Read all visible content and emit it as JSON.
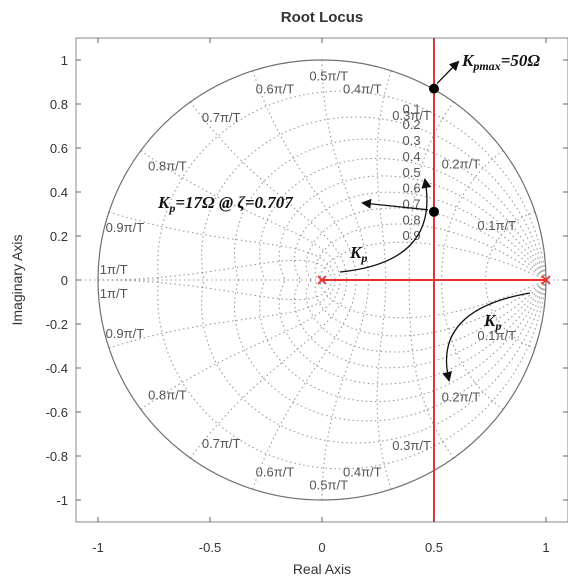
{
  "chart_data": {
    "type": "root-locus",
    "title": "Root Locus",
    "xlabel": "Real Axis",
    "ylabel": "Imaginary Axis",
    "xlim": [
      -1.1,
      1.1
    ],
    "ylim": [
      -1.1,
      1.1
    ],
    "xticks": [
      "-1",
      "-0.5",
      "0",
      "0.5",
      "1"
    ],
    "xtick_values": [
      -1,
      -0.5,
      0,
      0.5,
      1
    ],
    "yticks": [
      "1",
      "0.8",
      "0.6",
      "0.4",
      "0.2",
      "0",
      "-0.2",
      "-0.4",
      "-0.6",
      "-0.8",
      "-1"
    ],
    "ytick_values": [
      1,
      0.8,
      0.6,
      0.4,
      0.2,
      0,
      -0.2,
      -0.4,
      -0.6,
      -0.8,
      -1
    ],
    "unit_circle": true,
    "grid": "zgrid",
    "natural_frequency_labels": [
      {
        "text": "0.1π/T",
        "value": 0.1
      },
      {
        "text": "0.2π/T",
        "value": 0.2
      },
      {
        "text": "0.3π/T",
        "value": 0.3
      },
      {
        "text": "0.4π/T",
        "value": 0.4
      },
      {
        "text": "0.5π/T",
        "value": 0.5
      },
      {
        "text": "0.6π/T",
        "value": 0.6
      },
      {
        "text": "0.7π/T",
        "value": 0.7
      },
      {
        "text": "0.8π/T",
        "value": 0.8
      },
      {
        "text": "0.9π/T",
        "value": 0.9
      },
      {
        "text": "1π/T",
        "value": 1.0
      }
    ],
    "damping_labels": [
      "0.1",
      "0.2",
      "0.3",
      "0.4",
      "0.5",
      "0.6",
      "0.7",
      "0.8",
      "0.9"
    ],
    "damping_values": [
      0.1,
      0.2,
      0.3,
      0.4,
      0.5,
      0.6,
      0.7,
      0.8,
      0.9
    ],
    "poles": [
      {
        "x": 0,
        "y": 0
      },
      {
        "x": 1,
        "y": 0
      }
    ],
    "locus_segments": [
      {
        "from": [
          0,
          0
        ],
        "to": [
          1,
          0
        ]
      },
      {
        "from": [
          0.5,
          -1.1
        ],
        "to": [
          0.5,
          1.1
        ]
      }
    ],
    "locus_color": "#e8312f",
    "marked_points": [
      {
        "x": 0.5,
        "y": 0.87,
        "label": "Kpmax=50Ω"
      },
      {
        "x": 0.5,
        "y": 0.31,
        "label": "Kp=17Ω @ ζ=0.707"
      }
    ],
    "annotations": {
      "kpmax_main": "K",
      "kpmax_sub": "pmax",
      "kpmax_rest": "=50Ω",
      "kp17_main": "K",
      "kp17_sub": "p",
      "kp17_rest": "=17Ω @ ζ=0.707",
      "kp_arrow_label_main": "K",
      "kp_arrow_label_sub": "p"
    }
  }
}
